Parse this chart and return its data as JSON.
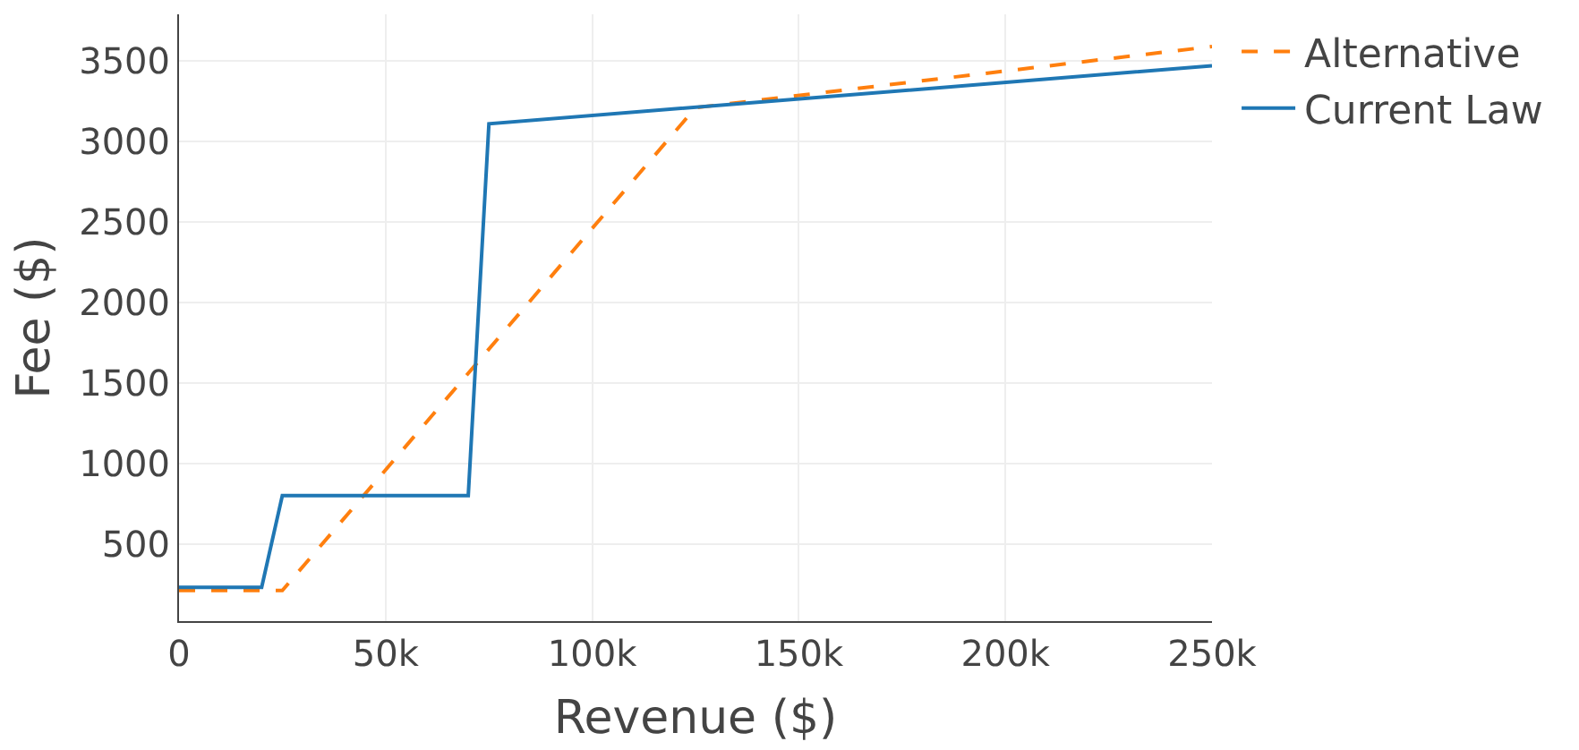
{
  "chart_data": {
    "type": "line",
    "xlabel": "Revenue ($)",
    "ylabel": "Fee ($)",
    "xlim": [
      0,
      250000
    ],
    "xticks": [
      0,
      {
        "value": 50000,
        "label": "50k"
      },
      {
        "value": 100000,
        "label": "100k"
      },
      {
        "value": 150000,
        "label": "150k"
      },
      {
        "value": 200000,
        "label": "200k"
      },
      {
        "value": 250000,
        "label": "250k"
      }
    ],
    "ylim": [
      20,
      3790
    ],
    "yticks": [
      500,
      1000,
      1500,
      2000,
      2500,
      3000,
      3500
    ],
    "grid": true,
    "legend": "top right",
    "series": [
      {
        "name": "Alternative",
        "color": "#ff7f0e",
        "line_style": "dashed",
        "x": [
          0,
          25000,
          125000,
          250000
        ],
        "values": [
          210,
          210,
          3210,
          3590
        ]
      },
      {
        "name": "Current Law",
        "color": "#1f77b4",
        "line_style": "solid",
        "x": [
          0,
          20000,
          25000,
          70000,
          75000,
          250000
        ],
        "values": [
          230,
          230,
          800,
          800,
          3110,
          3470
        ]
      }
    ]
  }
}
